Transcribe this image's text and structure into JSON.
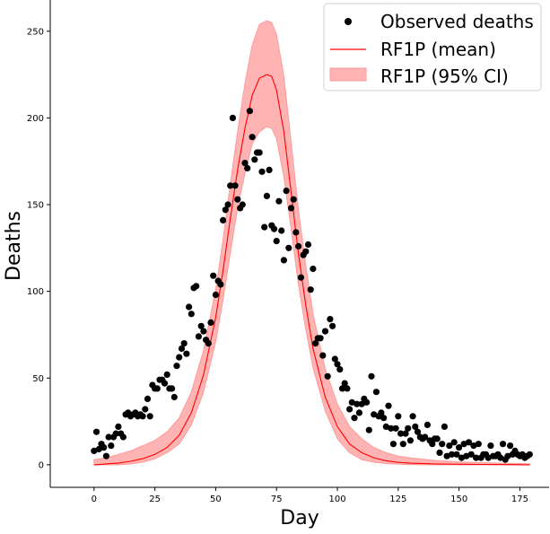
{
  "chart_data": {
    "type": "scatter",
    "title": "",
    "xlabel": "Day",
    "ylabel": "Deaths",
    "xlim": [
      -18,
      187
    ],
    "ylim": [
      -13,
      268
    ],
    "xticks": [
      0,
      25,
      50,
      75,
      100,
      125,
      150,
      175
    ],
    "yticks": [
      0,
      50,
      100,
      150,
      200,
      250
    ],
    "grid": false,
    "legend_position": "top-right",
    "colors": {
      "observed": "#000000",
      "mean": "#ff0000",
      "ci_fill": "#ffb3b3",
      "ci_edge": "#ff9a9a"
    },
    "series": [
      {
        "name": "Observed deaths",
        "kind": "scatter",
        "x": [
          0,
          1,
          2,
          3,
          4,
          5,
          6,
          7,
          8,
          9,
          10,
          11,
          12,
          13,
          14,
          15,
          16,
          17,
          18,
          19,
          20,
          21,
          22,
          23,
          24,
          25,
          26,
          27,
          28,
          29,
          30,
          31,
          32,
          33,
          34,
          35,
          36,
          37,
          38,
          39,
          40,
          41,
          42,
          43,
          44,
          45,
          46,
          47,
          48,
          49,
          50,
          51,
          52,
          53,
          54,
          55,
          56,
          57,
          58,
          59,
          60,
          61,
          62,
          63,
          64,
          65,
          66,
          67,
          68,
          69,
          70,
          71,
          72,
          73,
          74,
          75,
          76,
          77,
          78,
          79,
          80,
          81,
          82,
          83,
          84,
          85,
          86,
          87,
          88,
          89,
          90,
          91,
          92,
          93,
          94,
          95,
          96,
          97,
          98,
          99,
          100,
          101,
          102,
          103,
          104,
          105,
          106,
          107,
          108,
          109,
          110,
          111,
          112,
          113,
          114,
          115,
          116,
          117,
          118,
          119,
          120,
          121,
          122,
          123,
          124,
          125,
          126,
          127,
          128,
          129,
          130,
          131,
          132,
          133,
          134,
          135,
          136,
          137,
          138,
          139,
          140,
          141,
          142,
          143,
          144,
          145,
          146,
          147,
          148,
          149,
          150,
          151,
          152,
          153,
          154,
          155,
          156,
          157,
          158,
          159,
          160,
          161,
          162,
          163,
          164,
          165,
          166,
          167,
          168,
          169,
          170,
          171,
          172,
          173,
          174,
          175,
          176,
          177,
          178,
          179
        ],
        "y": [
          8,
          19,
          9,
          12,
          10,
          5,
          16,
          11,
          16,
          18,
          22,
          18,
          16,
          29,
          30,
          28,
          29,
          30,
          28,
          29,
          28,
          32,
          38,
          28,
          46,
          44,
          44,
          49,
          49,
          47,
          52,
          44,
          44,
          39,
          57,
          62,
          67,
          70,
          64,
          91,
          87,
          102,
          103,
          74,
          80,
          77,
          72,
          70,
          82,
          109,
          98,
          106,
          104,
          141,
          147,
          150,
          161,
          200,
          161,
          153,
          148,
          150,
          174,
          171,
          204,
          189,
          176,
          180,
          180,
          169,
          137,
          155,
          170,
          138,
          136,
          129,
          152,
          135,
          118,
          158,
          125,
          148,
          153,
          134,
          126,
          108,
          121,
          123,
          127,
          101,
          113,
          70,
          73,
          73,
          63,
          77,
          51,
          84,
          80,
          61,
          58,
          55,
          44,
          47,
          44,
          32,
          36,
          27,
          35,
          30,
          35,
          38,
          36,
          20,
          51,
          29,
          42,
          28,
          30,
          27,
          22,
          34,
          21,
          12,
          21,
          28,
          18,
          12,
          18,
          21,
          14,
          28,
          22,
          19,
          16,
          15,
          16,
          23,
          14,
          12,
          15,
          15,
          7,
          12,
          22,
          5,
          11,
          6,
          13,
          6,
          10,
          4,
          12,
          5,
          13,
          6,
          11,
          4,
          12,
          4,
          6,
          6,
          4,
          11,
          5,
          5,
          6,
          4,
          12,
          3,
          5,
          11,
          6,
          8,
          6,
          5,
          6,
          4,
          5,
          6
        ]
      },
      {
        "name": "RF1P (mean)",
        "kind": "line",
        "x": [
          0,
          5,
          10,
          15,
          20,
          25,
          30,
          35,
          40,
          45,
          50,
          53,
          56,
          59,
          62,
          65,
          68,
          71,
          73,
          75,
          78,
          81,
          84,
          87,
          90,
          95,
          100,
          105,
          110,
          115,
          120,
          125,
          130,
          140,
          150,
          160,
          170,
          179
        ],
        "y": [
          0,
          0.5,
          1,
          2,
          3.5,
          6,
          10,
          17,
          30,
          52,
          85,
          112,
          142,
          170,
          194,
          213,
          223,
          225,
          224,
          216,
          192,
          157,
          122,
          92,
          67,
          39,
          22,
          12,
          7,
          4,
          2.3,
          1.4,
          0.9,
          0.5,
          0.3,
          0.2,
          0.1,
          0
        ]
      },
      {
        "name": "RF1P (95% CI)",
        "kind": "band",
        "x": [
          0,
          5,
          10,
          15,
          20,
          25,
          30,
          35,
          40,
          45,
          50,
          53,
          56,
          59,
          62,
          65,
          68,
          71,
          73,
          75,
          78,
          81,
          84,
          87,
          90,
          95,
          100,
          105,
          110,
          115,
          120,
          125,
          130,
          140,
          150,
          160,
          170,
          179
        ],
        "lower": [
          0,
          0,
          0,
          0.5,
          1.5,
          3.5,
          7,
          12,
          23,
          42,
          71,
          95,
          122,
          148,
          168,
          185,
          192,
          195,
          194,
          188,
          166,
          136,
          104,
          78,
          56,
          31,
          15,
          7,
          3,
          1.5,
          0.7,
          0.3,
          0.1,
          0,
          0,
          0,
          0,
          0
        ],
        "upper": [
          3,
          4,
          6,
          8,
          11,
          14,
          19,
          27,
          42,
          66,
          101,
          130,
          162,
          192,
          220,
          242,
          254,
          256,
          255,
          248,
          224,
          186,
          147,
          115,
          87,
          55,
          35,
          22,
          15,
          10,
          7,
          5,
          4,
          2.5,
          1.7,
          1.2,
          0.8,
          0.5
        ]
      }
    ]
  }
}
